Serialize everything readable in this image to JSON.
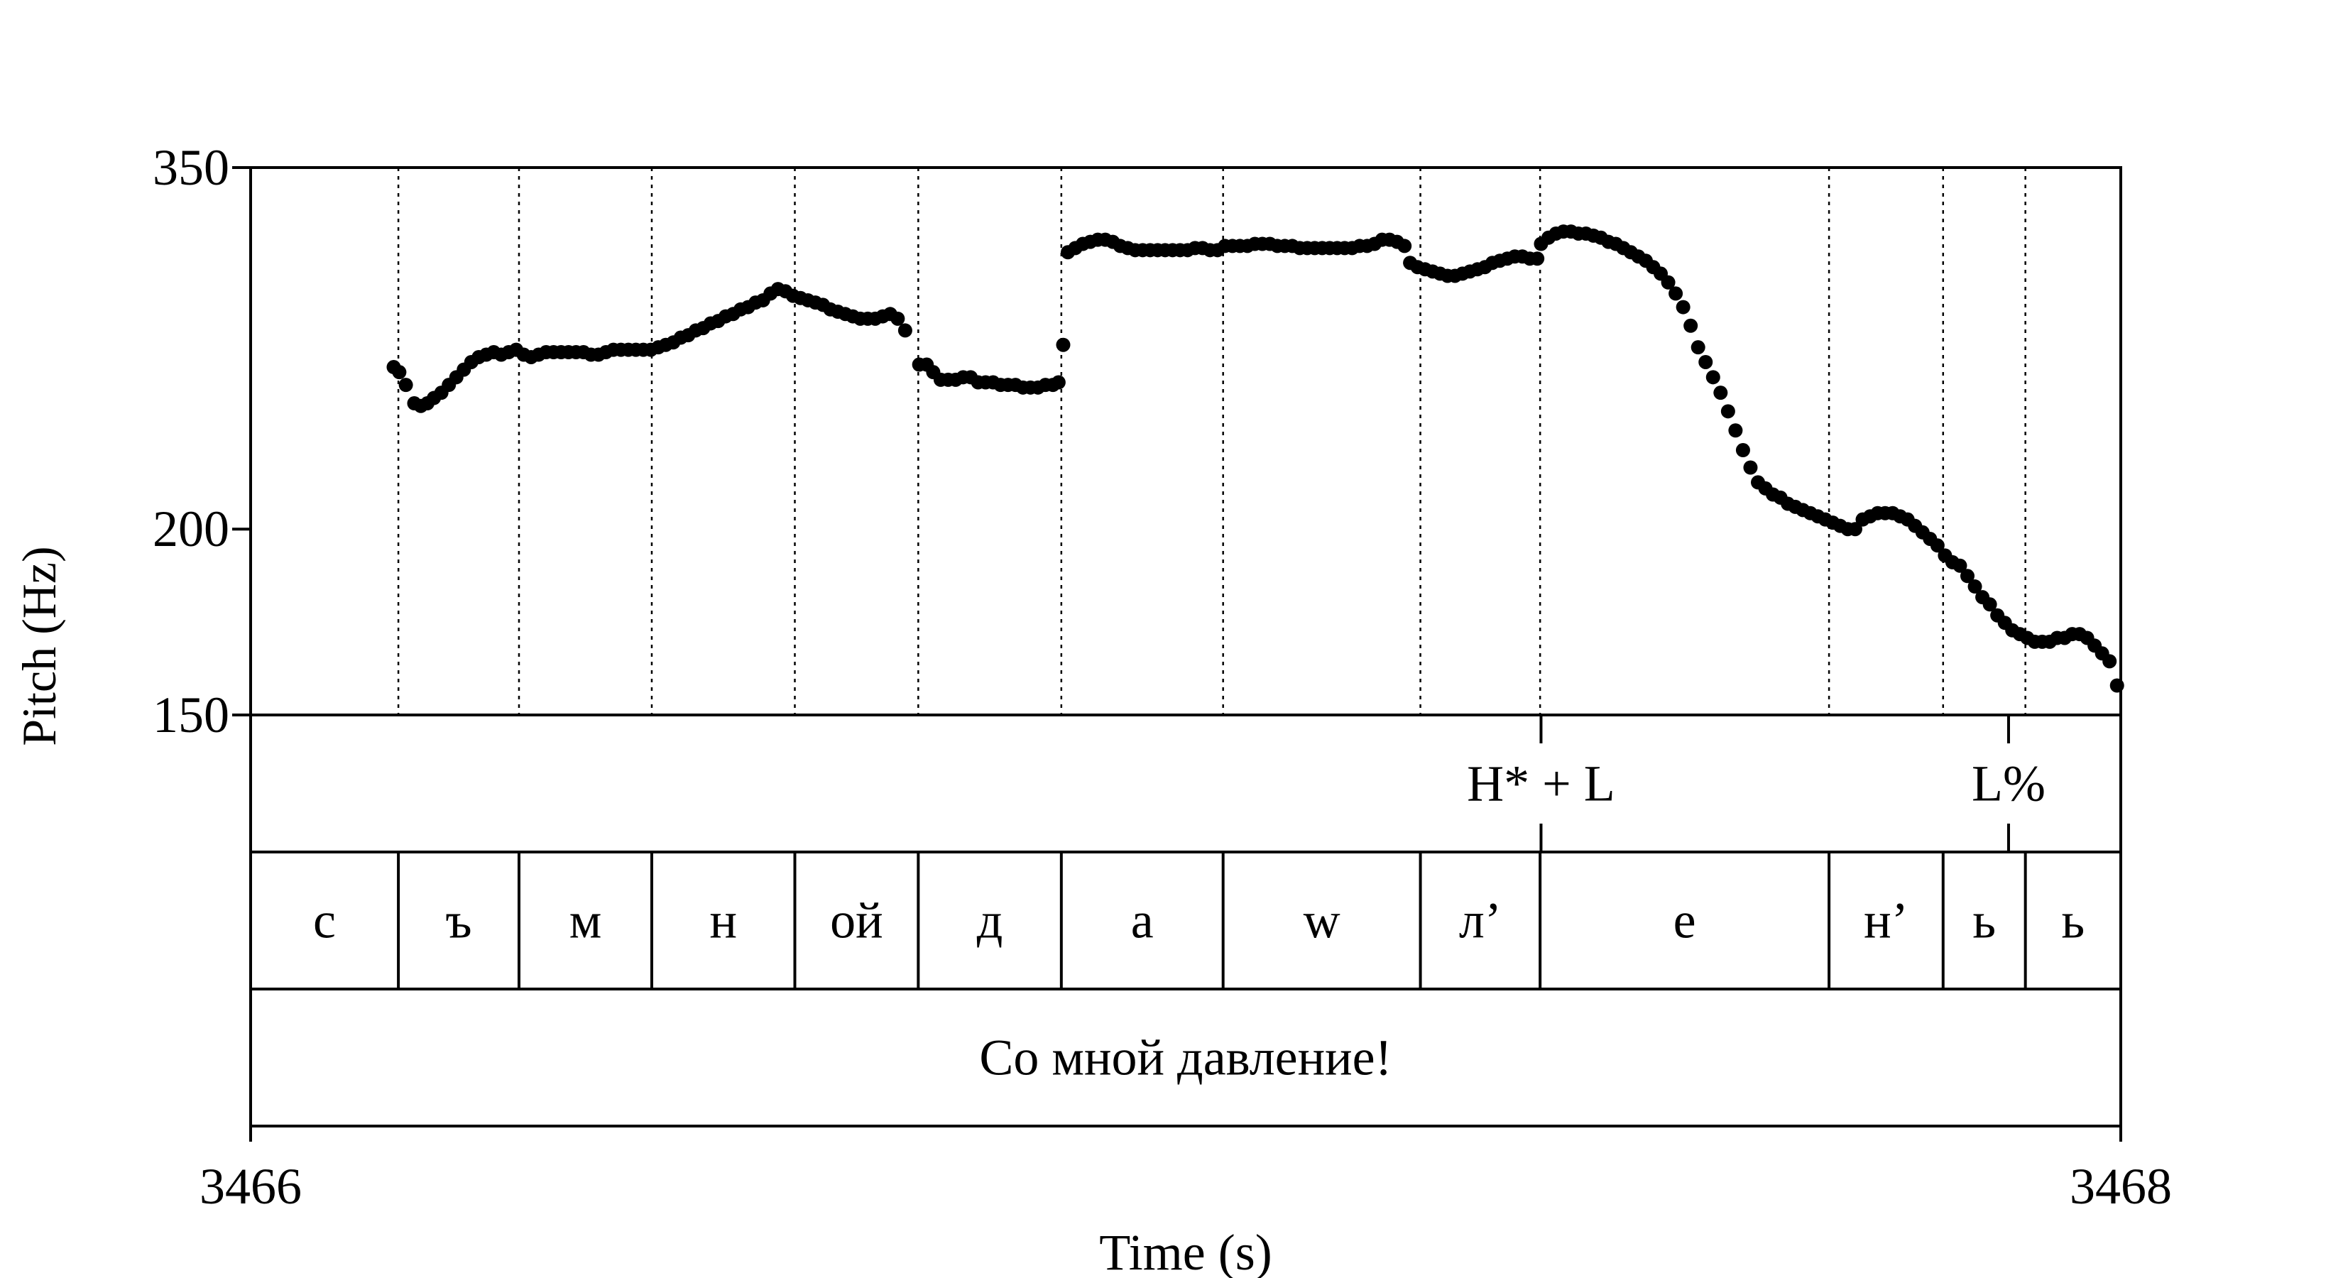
{
  "chart_data": {
    "type": "scatter",
    "xlabel": "Time (s)",
    "ylabel": "Pitch (Hz)",
    "xlim": [
      3466,
      3468
    ],
    "ylim": [
      150,
      350
    ],
    "y_scale": "log",
    "x_ticks": [
      "3466",
      "3468"
    ],
    "y_ticks": [
      {
        "value": 350,
        "label": "350"
      },
      {
        "value": 200,
        "label": "200"
      },
      {
        "value": 150,
        "label": "150"
      }
    ],
    "grid": false,
    "marker_color": "#000000",
    "series": [
      {
        "points": [
          [
            3466.153,
            257
          ],
          [
            3466.159,
            255
          ],
          [
            3466.166,
            250
          ],
          [
            3466.175,
            243
          ],
          [
            3466.182,
            242
          ],
          [
            3466.189,
            243
          ],
          [
            3466.196,
            245
          ],
          [
            3466.204,
            247
          ],
          [
            3466.212,
            250
          ],
          [
            3466.22,
            253
          ],
          [
            3466.228,
            256
          ],
          [
            3466.236,
            259
          ],
          [
            3466.244,
            261
          ],
          [
            3466.252,
            262
          ],
          [
            3466.26,
            263
          ],
          [
            3466.268,
            262
          ],
          [
            3466.276,
            263
          ],
          [
            3466.284,
            264
          ],
          [
            3466.292,
            262
          ],
          [
            3466.3,
            261
          ],
          [
            3466.308,
            262
          ],
          [
            3466.316,
            263
          ],
          [
            3466.324,
            263
          ],
          [
            3466.332,
            263
          ],
          [
            3466.34,
            263
          ],
          [
            3466.348,
            263
          ],
          [
            3466.356,
            263
          ],
          [
            3466.364,
            262
          ],
          [
            3466.372,
            262
          ],
          [
            3466.38,
            263
          ],
          [
            3466.388,
            264
          ],
          [
            3466.396,
            264
          ],
          [
            3466.404,
            264
          ],
          [
            3466.412,
            264
          ],
          [
            3466.42,
            264
          ],
          [
            3466.428,
            264
          ],
          [
            3466.436,
            265
          ],
          [
            3466.444,
            266
          ],
          [
            3466.452,
            267
          ],
          [
            3466.46,
            269
          ],
          [
            3466.468,
            270
          ],
          [
            3466.476,
            272
          ],
          [
            3466.484,
            273
          ],
          [
            3466.492,
            275
          ],
          [
            3466.5,
            276
          ],
          [
            3466.508,
            278
          ],
          [
            3466.516,
            279
          ],
          [
            3466.524,
            281
          ],
          [
            3466.532,
            282
          ],
          [
            3466.54,
            284
          ],
          [
            3466.548,
            285
          ],
          [
            3466.556,
            288
          ],
          [
            3466.564,
            290
          ],
          [
            3466.572,
            289
          ],
          [
            3466.58,
            287
          ],
          [
            3466.588,
            286
          ],
          [
            3466.596,
            285
          ],
          [
            3466.604,
            284
          ],
          [
            3466.612,
            283
          ],
          [
            3466.62,
            281
          ],
          [
            3466.628,
            280
          ],
          [
            3466.636,
            279
          ],
          [
            3466.644,
            278
          ],
          [
            3466.652,
            277
          ],
          [
            3466.66,
            277
          ],
          [
            3466.668,
            277
          ],
          [
            3466.676,
            278
          ],
          [
            3466.684,
            279
          ],
          [
            3466.692,
            277
          ],
          [
            3466.7,
            272
          ],
          [
            3466.715,
            258
          ],
          [
            3466.723,
            258
          ],
          [
            3466.73,
            255
          ],
          [
            3466.738,
            252
          ],
          [
            3466.746,
            252
          ],
          [
            3466.754,
            252
          ],
          [
            3466.762,
            253
          ],
          [
            3466.77,
            253
          ],
          [
            3466.778,
            251
          ],
          [
            3466.786,
            251
          ],
          [
            3466.794,
            251
          ],
          [
            3466.802,
            250
          ],
          [
            3466.81,
            250
          ],
          [
            3466.818,
            250
          ],
          [
            3466.826,
            249
          ],
          [
            3466.834,
            249
          ],
          [
            3466.842,
            249
          ],
          [
            3466.85,
            250
          ],
          [
            3466.858,
            250
          ],
          [
            3466.864,
            251
          ],
          [
            3466.869,
            266
          ],
          [
            3466.874,
            307
          ],
          [
            3466.882,
            309
          ],
          [
            3466.89,
            311
          ],
          [
            3466.898,
            312
          ],
          [
            3466.906,
            313
          ],
          [
            3466.914,
            313
          ],
          [
            3466.922,
            312
          ],
          [
            3466.93,
            310
          ],
          [
            3466.938,
            309
          ],
          [
            3466.946,
            308
          ],
          [
            3466.954,
            308
          ],
          [
            3466.962,
            308
          ],
          [
            3466.97,
            308
          ],
          [
            3466.978,
            308
          ],
          [
            3466.986,
            308
          ],
          [
            3466.994,
            308
          ],
          [
            3467.002,
            308
          ],
          [
            3467.01,
            309
          ],
          [
            3467.018,
            309
          ],
          [
            3467.026,
            308
          ],
          [
            3467.034,
            308
          ],
          [
            3467.042,
            310
          ],
          [
            3467.05,
            310
          ],
          [
            3467.058,
            310
          ],
          [
            3467.066,
            310
          ],
          [
            3467.074,
            311
          ],
          [
            3467.082,
            311
          ],
          [
            3467.09,
            311
          ],
          [
            3467.098,
            310
          ],
          [
            3467.106,
            310
          ],
          [
            3467.114,
            310
          ],
          [
            3467.122,
            309
          ],
          [
            3467.13,
            309
          ],
          [
            3467.138,
            309
          ],
          [
            3467.146,
            309
          ],
          [
            3467.154,
            309
          ],
          [
            3467.162,
            309
          ],
          [
            3467.17,
            309
          ],
          [
            3467.178,
            309
          ],
          [
            3467.186,
            310
          ],
          [
            3467.194,
            310
          ],
          [
            3467.202,
            311
          ],
          [
            3467.21,
            313
          ],
          [
            3467.218,
            313
          ],
          [
            3467.226,
            312
          ],
          [
            3467.234,
            310
          ],
          [
            3467.24,
            302
          ],
          [
            3467.248,
            300
          ],
          [
            3467.256,
            299
          ],
          [
            3467.264,
            298
          ],
          [
            3467.272,
            297
          ],
          [
            3467.28,
            296
          ],
          [
            3467.288,
            296
          ],
          [
            3467.296,
            297
          ],
          [
            3467.304,
            298
          ],
          [
            3467.312,
            299
          ],
          [
            3467.32,
            300
          ],
          [
            3467.328,
            302
          ],
          [
            3467.336,
            303
          ],
          [
            3467.344,
            304
          ],
          [
            3467.352,
            305
          ],
          [
            3467.36,
            305
          ],
          [
            3467.368,
            304
          ],
          [
            3467.376,
            304
          ],
          [
            3467.38,
            311
          ],
          [
            3467.388,
            314
          ],
          [
            3467.396,
            316
          ],
          [
            3467.404,
            317
          ],
          [
            3467.412,
            317
          ],
          [
            3467.42,
            316
          ],
          [
            3467.428,
            316
          ],
          [
            3467.436,
            315
          ],
          [
            3467.444,
            314
          ],
          [
            3467.452,
            312
          ],
          [
            3467.46,
            311
          ],
          [
            3467.468,
            309
          ],
          [
            3467.476,
            307
          ],
          [
            3467.484,
            305
          ],
          [
            3467.492,
            303
          ],
          [
            3467.5,
            300
          ],
          [
            3467.508,
            297
          ],
          [
            3467.516,
            293
          ],
          [
            3467.524,
            288
          ],
          [
            3467.532,
            282
          ],
          [
            3467.54,
            274
          ],
          [
            3467.548,
            265
          ],
          [
            3467.556,
            259
          ],
          [
            3467.564,
            253
          ],
          [
            3467.572,
            247
          ],
          [
            3467.58,
            240
          ],
          [
            3467.588,
            233
          ],
          [
            3467.596,
            226
          ],
          [
            3467.604,
            220
          ],
          [
            3467.612,
            215
          ],
          [
            3467.62,
            213
          ],
          [
            3467.628,
            211
          ],
          [
            3467.636,
            210
          ],
          [
            3467.644,
            208
          ],
          [
            3467.652,
            207
          ],
          [
            3467.66,
            206
          ],
          [
            3467.668,
            205
          ],
          [
            3467.676,
            204
          ],
          [
            3467.684,
            203
          ],
          [
            3467.692,
            202
          ],
          [
            3467.7,
            201
          ],
          [
            3467.708,
            200
          ],
          [
            3467.716,
            200
          ],
          [
            3467.724,
            203
          ],
          [
            3467.732,
            204
          ],
          [
            3467.74,
            205
          ],
          [
            3467.748,
            205
          ],
          [
            3467.756,
            205
          ],
          [
            3467.764,
            204
          ],
          [
            3467.772,
            203
          ],
          [
            3467.78,
            201
          ],
          [
            3467.788,
            199
          ],
          [
            3467.796,
            197
          ],
          [
            3467.804,
            195
          ],
          [
            3467.812,
            192
          ],
          [
            3467.82,
            190
          ],
          [
            3467.828,
            189
          ],
          [
            3467.836,
            186
          ],
          [
            3467.844,
            183
          ],
          [
            3467.852,
            180
          ],
          [
            3467.86,
            178
          ],
          [
            3467.868,
            175
          ],
          [
            3467.876,
            173
          ],
          [
            3467.884,
            171
          ],
          [
            3467.892,
            170
          ],
          [
            3467.9,
            169
          ],
          [
            3467.908,
            168
          ],
          [
            3467.916,
            168
          ],
          [
            3467.924,
            168
          ],
          [
            3467.932,
            169
          ],
          [
            3467.94,
            169
          ],
          [
            3467.948,
            170
          ],
          [
            3467.956,
            170
          ],
          [
            3467.964,
            169
          ],
          [
            3467.972,
            167
          ],
          [
            3467.98,
            165
          ],
          [
            3467.988,
            163
          ],
          [
            3467.996,
            157
          ]
        ]
      }
    ],
    "tiers": [
      {
        "intervals": [
          {
            "start": 3466.0,
            "end": 3467.38,
            "text": ""
          },
          {
            "start": 3467.38,
            "end": 3467.88,
            "text": "H* + L"
          },
          {
            "start": 3467.88,
            "end": 3468.0,
            "text": "L%"
          }
        ]
      },
      {
        "intervals": [
          {
            "start": 3466.0,
            "end": 3466.158,
            "text": "с"
          },
          {
            "start": 3466.158,
            "end": 3466.287,
            "text": "ъ"
          },
          {
            "start": 3466.287,
            "end": 3466.429,
            "text": "м"
          },
          {
            "start": 3466.429,
            "end": 3466.582,
            "text": "н"
          },
          {
            "start": 3466.582,
            "end": 3466.714,
            "text": "ой"
          },
          {
            "start": 3466.714,
            "end": 3466.867,
            "text": "д"
          },
          {
            "start": 3466.867,
            "end": 3467.04,
            "text": "а"
          },
          {
            "start": 3467.04,
            "end": 3467.251,
            "text": "w"
          },
          {
            "start": 3467.251,
            "end": 3467.379,
            "text": "л’"
          },
          {
            "start": 3467.379,
            "end": 3467.688,
            "text": "е"
          },
          {
            "start": 3467.688,
            "end": 3467.81,
            "text": "н’"
          },
          {
            "start": 3467.81,
            "end": 3467.898,
            "text": "ь"
          },
          {
            "start": 3467.898,
            "end": 3468.0,
            "text": "ь"
          }
        ]
      },
      {
        "intervals": [
          {
            "start": 3466.0,
            "end": 3468.0,
            "text": "Со мной давление!"
          }
        ]
      }
    ]
  }
}
